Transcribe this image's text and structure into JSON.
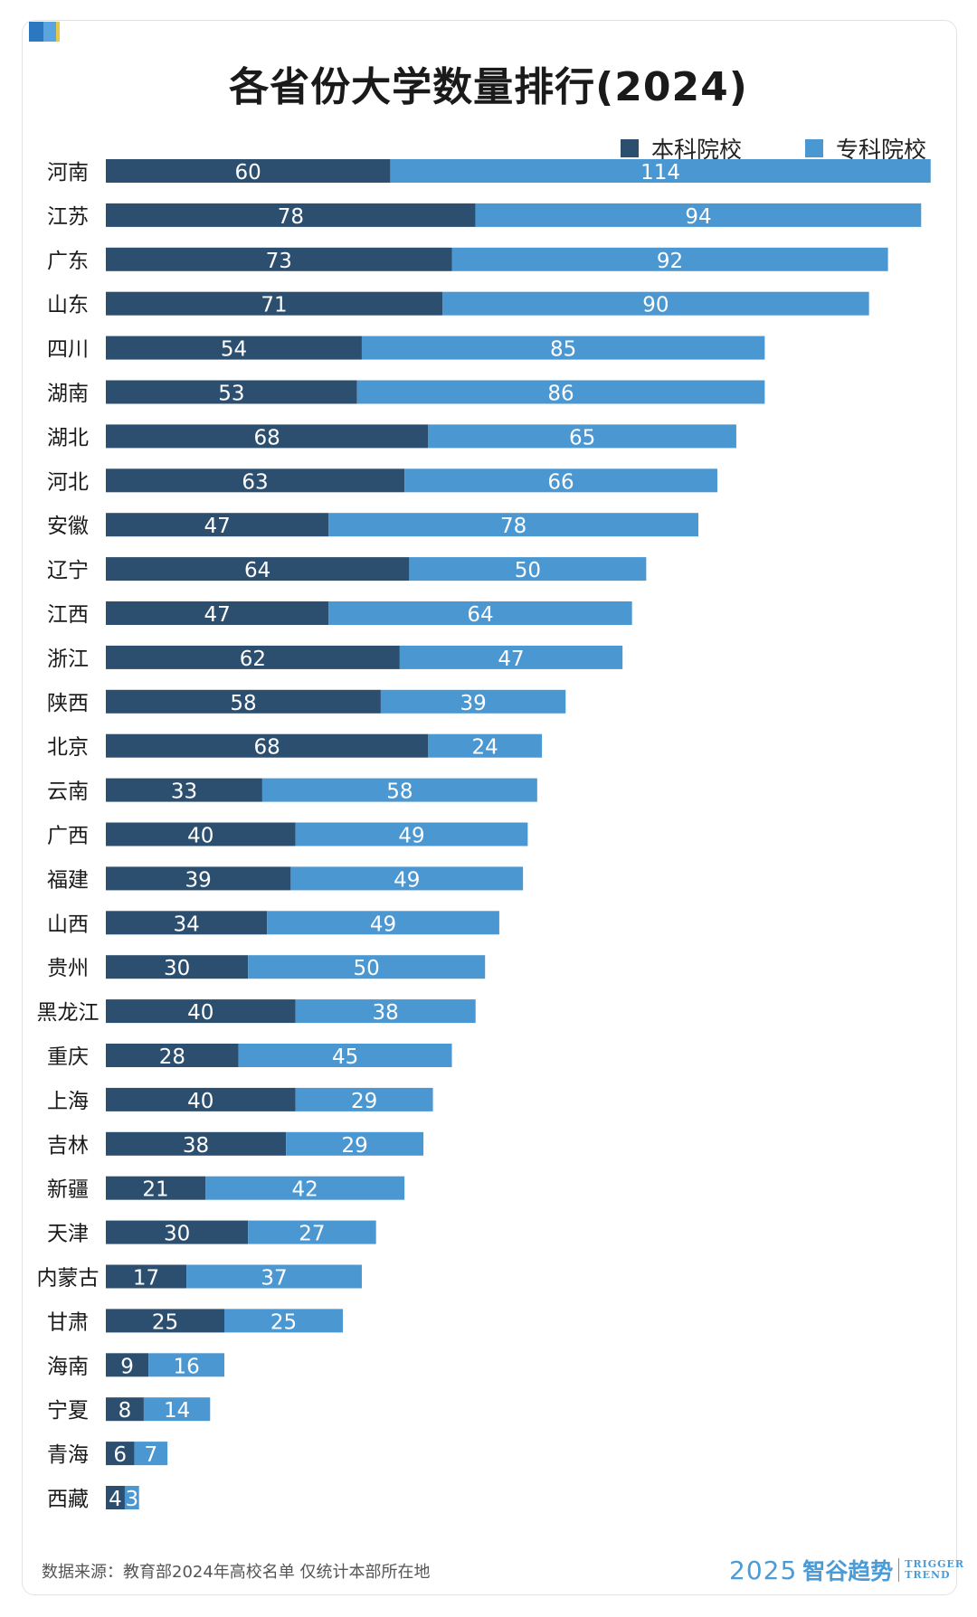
{
  "title": "各省份大学数量排行(2024)",
  "footer_note": "数据来源：教育部2024年高校名单 仅统计本部所在地",
  "brand": {
    "year": "2025",
    "name": "智谷趋势",
    "en_line1": "TRIGGER",
    "en_line2": "TREND"
  },
  "colors": {
    "undergrad": "#2c4f70",
    "vocational": "#4a97d2",
    "deco": [
      "#2c78c0",
      "#5aa5e0",
      "#e8c84a"
    ]
  },
  "chart_data": {
    "type": "bar",
    "orientation": "horizontal",
    "stacked": true,
    "title": "各省份大学数量排行(2024)",
    "legend_position": "top-right",
    "grid": false,
    "categories": [
      "河南",
      "江苏",
      "广东",
      "山东",
      "四川",
      "湖南",
      "湖北",
      "河北",
      "安徽",
      "辽宁",
      "江西",
      "浙江",
      "陕西",
      "北京",
      "云南",
      "广西",
      "福建",
      "山西",
      "贵州",
      "黑龙江",
      "重庆",
      "上海",
      "吉林",
      "新疆",
      "天津",
      "内蒙古",
      "甘肃",
      "海南",
      "宁夏",
      "青海",
      "西藏"
    ],
    "series": [
      {
        "name": "本科院校",
        "values": [
          60,
          78,
          73,
          71,
          54,
          53,
          68,
          63,
          47,
          64,
          47,
          62,
          58,
          68,
          33,
          40,
          39,
          34,
          30,
          40,
          28,
          40,
          38,
          21,
          30,
          17,
          25,
          9,
          8,
          6,
          4
        ]
      },
      {
        "name": "专科院校",
        "values": [
          114,
          94,
          92,
          90,
          85,
          86,
          65,
          66,
          78,
          50,
          64,
          47,
          39,
          24,
          58,
          49,
          49,
          49,
          50,
          38,
          45,
          29,
          29,
          42,
          27,
          37,
          25,
          16,
          14,
          7,
          3
        ]
      }
    ]
  }
}
